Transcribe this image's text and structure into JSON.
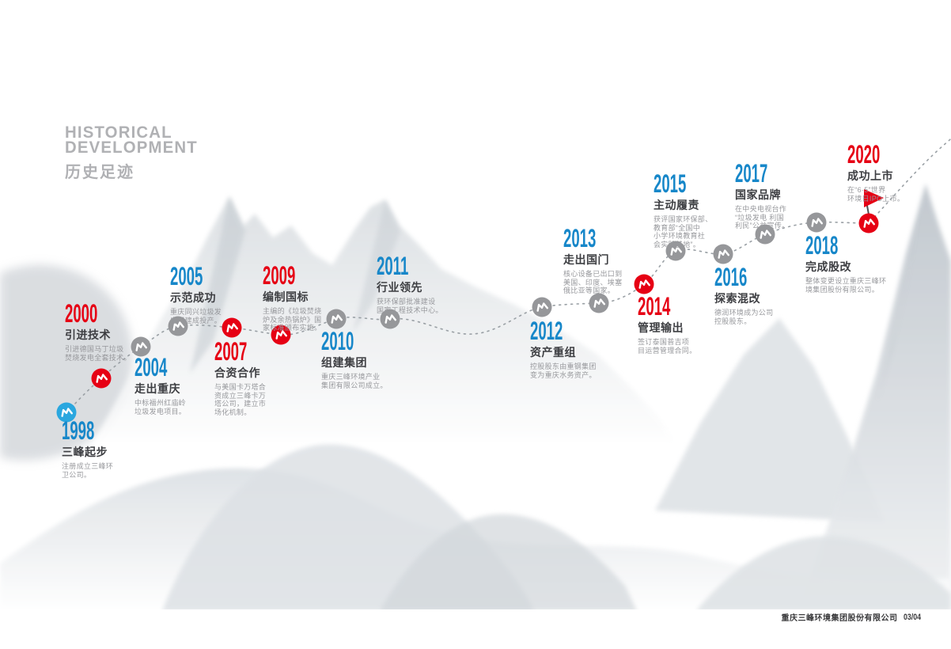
{
  "header": {
    "title_line1": "HISTORICAL",
    "title_line2": "DEVELOPMENT",
    "subtitle": "历史足迹"
  },
  "footer": {
    "company": "重庆三峰环境集团股份有限公司",
    "page_indicator": "03/04"
  },
  "colors": {
    "red": "#e60014",
    "blue": "#1787c9",
    "marker_blue": "#2aa7df",
    "marker_gray": "#96979a",
    "title_gray": "#b0b1b4",
    "heading_dark": "#3d3e42",
    "desc_gray": "#97989c",
    "path_gray": "#9aa0a5",
    "flag_pole": "#4d4d4f"
  },
  "timeline": {
    "milestones": [
      {
        "year": "1998",
        "title": "三峰起步",
        "desc": "注册成立三峰环\n卫公司。",
        "accent": "blue",
        "marker": "blue"
      },
      {
        "year": "2000",
        "title": "引进技术",
        "desc": "引进德国马丁垃圾\n焚烧发电全套技术。",
        "accent": "red",
        "marker": "red"
      },
      {
        "year": "2004",
        "title": "走出重庆",
        "desc": "中标福州红庙岭\n垃圾发电项目。",
        "accent": "blue",
        "marker": "gray"
      },
      {
        "year": "2005",
        "title": "示范成功",
        "desc": "重庆同兴垃圾发\n电厂建成投产。",
        "accent": "blue",
        "marker": "gray"
      },
      {
        "year": "2007",
        "title": "合资合作",
        "desc": "与美国卡万塔合\n资成立三峰卡万\n塔公司，建立市\n场化机制。",
        "accent": "red",
        "marker": "red"
      },
      {
        "year": "2009",
        "title": "编制国标",
        "desc": "主编的《垃圾焚烧\n炉及余热锅炉》国\n家标准颁布实施。",
        "accent": "red",
        "marker": "red"
      },
      {
        "year": "2010",
        "title": "组建集团",
        "desc": "重庆三峰环境产业\n集团有限公司成立。",
        "accent": "blue",
        "marker": "gray"
      },
      {
        "year": "2011",
        "title": "行业领先",
        "desc": "获环保部批准建设\n国家工程技术中心。",
        "accent": "blue",
        "marker": "gray"
      },
      {
        "year": "2012",
        "title": "资产重组",
        "desc": "控股股东由重钢集团\n变为重庆水务资产。",
        "accent": "blue",
        "marker": "gray"
      },
      {
        "year": "2013",
        "title": "走出国门",
        "desc": "核心设备已出口到\n美国、印度、埃塞\n俄比亚等国家。",
        "accent": "blue",
        "marker": "gray"
      },
      {
        "year": "2014",
        "title": "管理输出",
        "desc": "签订泰国普吉项\n目运营管理合同。",
        "accent": "red",
        "marker": "red"
      },
      {
        "year": "2015",
        "title": "主动履责",
        "desc": "获评国家环保部、\n教育部“全国中\n小学环境教育社\n会实践基地”。",
        "accent": "blue",
        "marker": "gray"
      },
      {
        "year": "2016",
        "title": "探索混改",
        "desc": "德润环境成为公司\n控股股东。",
        "accent": "blue",
        "marker": "gray"
      },
      {
        "year": "2017",
        "title": "国家品牌",
        "desc": "在中央电视台作\n“垃圾发电 利国\n利民”公益宣传。",
        "accent": "blue",
        "marker": "gray"
      },
      {
        "year": "2018",
        "title": "完成股改",
        "desc": "整体变更设立重庆三峰环\n境集团股份有限公司。",
        "accent": "blue",
        "marker": "gray"
      },
      {
        "year": "2020",
        "title": "成功上市",
        "desc": "在“6·5”世界\n环境日IPO上市。",
        "accent": "red",
        "marker": "red"
      }
    ]
  }
}
